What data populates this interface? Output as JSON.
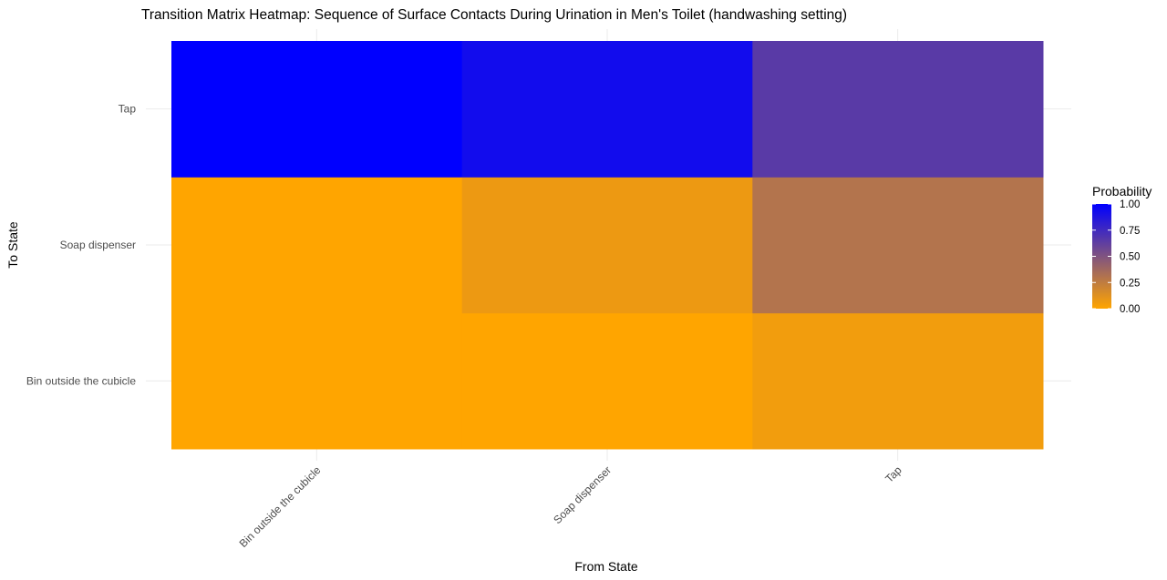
{
  "chart_data": {
    "type": "heatmap",
    "title": "Transition Matrix Heatmap: Sequence of Surface Contacts During Urination in Men's Toilet (handwashing setting)",
    "xlabel": "From State",
    "ylabel": "To State",
    "x_categories": [
      "Bin outside the cubicle",
      "Soap dispenser",
      "Tap"
    ],
    "y_categories": [
      "Bin outside the cubicle",
      "Soap dispenser",
      "Tap"
    ],
    "cells": [
      {
        "from": "Bin outside the cubicle",
        "to": "Bin outside the cubicle",
        "value": 0.0
      },
      {
        "from": "Bin outside the cubicle",
        "to": "Soap dispenser",
        "value": 0.0
      },
      {
        "from": "Bin outside the cubicle",
        "to": "Tap",
        "value": 1.0
      },
      {
        "from": "Soap dispenser",
        "to": "Bin outside the cubicle",
        "value": 0.0
      },
      {
        "from": "Soap dispenser",
        "to": "Soap dispenser",
        "value": 0.07
      },
      {
        "from": "Soap dispenser",
        "to": "Tap",
        "value": 0.93
      },
      {
        "from": "Tap",
        "to": "Bin outside the cubicle",
        "value": 0.05
      },
      {
        "from": "Tap",
        "to": "Soap dispenser",
        "value": 0.3
      },
      {
        "from": "Tap",
        "to": "Tap",
        "value": 0.65
      }
    ],
    "legend": {
      "title": "Probability",
      "position": "right",
      "ticks": [
        "0.00",
        "0.25",
        "0.50",
        "0.75",
        "1.00"
      ],
      "tick_values": [
        0,
        0.25,
        0.5,
        0.75,
        1.0
      ],
      "range": [
        0,
        1
      ]
    },
    "colors": {
      "low": "#ffa500",
      "high": "#0000ff"
    },
    "grid": true
  }
}
